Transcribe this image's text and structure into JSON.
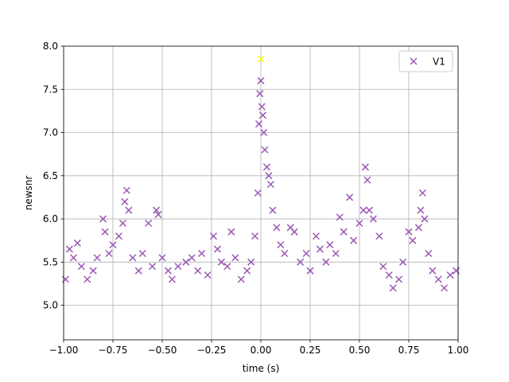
{
  "chart_data": {
    "type": "scatter",
    "title": "",
    "xlabel": "time (s)",
    "ylabel": "newsnr",
    "xlim": [
      -1.0,
      1.0
    ],
    "ylim": [
      4.6,
      8.0
    ],
    "xticks": [
      -1.0,
      -0.75,
      -0.5,
      -0.25,
      0.0,
      0.25,
      0.5,
      0.75,
      1.0
    ],
    "xtick_labels": [
      "−1.00",
      "−0.75",
      "−0.50",
      "−0.25",
      "0.00",
      "0.25",
      "0.50",
      "0.75",
      "1.00"
    ],
    "yticks": [
      5.0,
      5.5,
      6.0,
      6.5,
      7.0,
      7.5,
      8.0
    ],
    "ytick_labels": [
      "5.0",
      "5.5",
      "6.0",
      "6.5",
      "7.0",
      "7.5",
      "8.0"
    ],
    "grid": true,
    "legend_position": "top-right",
    "marker": "x",
    "series": [
      {
        "name": "V1",
        "color": "#9b59b6",
        "points": [
          [
            -0.99,
            5.3
          ],
          [
            -0.97,
            5.65
          ],
          [
            -0.95,
            5.55
          ],
          [
            -0.93,
            5.72
          ],
          [
            -0.91,
            5.45
          ],
          [
            -0.88,
            5.3
          ],
          [
            -0.85,
            5.4
          ],
          [
            -0.83,
            5.55
          ],
          [
            -0.8,
            6.0
          ],
          [
            -0.79,
            5.85
          ],
          [
            -0.77,
            5.6
          ],
          [
            -0.75,
            5.7
          ],
          [
            -0.72,
            5.8
          ],
          [
            -0.7,
            5.95
          ],
          [
            -0.69,
            6.2
          ],
          [
            -0.68,
            6.33
          ],
          [
            -0.67,
            6.1
          ],
          [
            -0.65,
            5.55
          ],
          [
            -0.62,
            5.4
          ],
          [
            -0.6,
            5.6
          ],
          [
            -0.57,
            5.95
          ],
          [
            -0.55,
            5.45
          ],
          [
            -0.53,
            6.1
          ],
          [
            -0.52,
            6.05
          ],
          [
            -0.5,
            5.55
          ],
          [
            -0.47,
            5.4
          ],
          [
            -0.45,
            5.3
          ],
          [
            -0.42,
            5.45
          ],
          [
            -0.38,
            5.5
          ],
          [
            -0.35,
            5.55
          ],
          [
            -0.32,
            5.4
          ],
          [
            -0.3,
            5.6
          ],
          [
            -0.27,
            5.35
          ],
          [
            -0.24,
            5.8
          ],
          [
            -0.22,
            5.65
          ],
          [
            -0.2,
            5.5
          ],
          [
            -0.17,
            5.45
          ],
          [
            -0.15,
            5.85
          ],
          [
            -0.13,
            5.55
          ],
          [
            -0.1,
            5.3
          ],
          [
            -0.07,
            5.4
          ],
          [
            -0.05,
            5.5
          ],
          [
            -0.03,
            5.8
          ],
          [
            -0.015,
            6.3
          ],
          [
            -0.01,
            7.1
          ],
          [
            -0.005,
            7.45
          ],
          [
            0.0,
            7.6
          ],
          [
            0.005,
            7.3
          ],
          [
            0.01,
            7.2
          ],
          [
            0.015,
            7.0
          ],
          [
            0.02,
            6.8
          ],
          [
            0.03,
            6.6
          ],
          [
            0.04,
            6.5
          ],
          [
            0.05,
            6.4
          ],
          [
            0.06,
            6.1
          ],
          [
            0.08,
            5.9
          ],
          [
            0.1,
            5.7
          ],
          [
            0.12,
            5.6
          ],
          [
            0.15,
            5.9
          ],
          [
            0.17,
            5.85
          ],
          [
            0.2,
            5.5
          ],
          [
            0.23,
            5.6
          ],
          [
            0.25,
            5.4
          ],
          [
            0.28,
            5.8
          ],
          [
            0.3,
            5.65
          ],
          [
            0.33,
            5.5
          ],
          [
            0.35,
            5.7
          ],
          [
            0.38,
            5.6
          ],
          [
            0.4,
            6.02
          ],
          [
            0.42,
            5.85
          ],
          [
            0.45,
            6.25
          ],
          [
            0.47,
            5.75
          ],
          [
            0.5,
            5.95
          ],
          [
            0.52,
            6.1
          ],
          [
            0.53,
            6.6
          ],
          [
            0.54,
            6.45
          ],
          [
            0.55,
            6.1
          ],
          [
            0.57,
            6.0
          ],
          [
            0.6,
            5.8
          ],
          [
            0.62,
            5.45
          ],
          [
            0.65,
            5.35
          ],
          [
            0.67,
            5.2
          ],
          [
            0.7,
            5.3
          ],
          [
            0.72,
            5.5
          ],
          [
            0.75,
            5.85
          ],
          [
            0.77,
            5.75
          ],
          [
            0.8,
            5.9
          ],
          [
            0.81,
            6.1
          ],
          [
            0.82,
            6.3
          ],
          [
            0.83,
            6.0
          ],
          [
            0.85,
            5.6
          ],
          [
            0.87,
            5.4
          ],
          [
            0.9,
            5.3
          ],
          [
            0.93,
            5.2
          ],
          [
            0.96,
            5.35
          ],
          [
            0.99,
            5.4
          ]
        ]
      }
    ],
    "highlight": {
      "x": 0.0,
      "y": 7.85,
      "color": "#ffff00"
    }
  }
}
